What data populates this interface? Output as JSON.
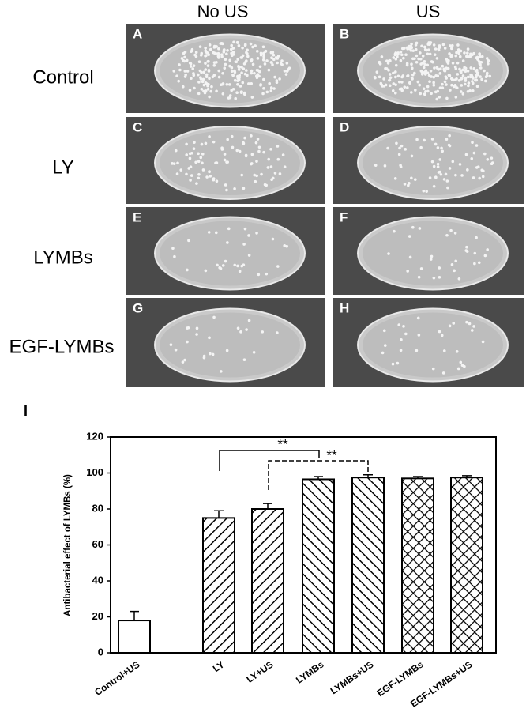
{
  "columns": [
    "No US",
    "US"
  ],
  "rows": [
    "Control",
    "LY",
    "LYMBs",
    "EGF-LYMBs"
  ],
  "panels": [
    "A",
    "B",
    "C",
    "D",
    "E",
    "F",
    "G",
    "H"
  ],
  "chart_data": {
    "type": "bar",
    "panel_label": "I",
    "y_label": "Antibacterial effect of LYMBs (%)",
    "categories": [
      "Control+US",
      "LY",
      "LY+US",
      "LYMBs",
      "LYMBs+US",
      "EGF-LYMBs",
      "EGF-LYMBs+US"
    ],
    "values": [
      18,
      75,
      80,
      96.5,
      97.5,
      97,
      97.5
    ],
    "errors": [
      5,
      4,
      3,
      1.5,
      1.5,
      1,
      1
    ],
    "hatches": [
      "none",
      "forward",
      "forward",
      "back",
      "back",
      "cross",
      "cross"
    ],
    "color": "#ffffff",
    "annotations": [
      "**",
      "**"
    ],
    "ylim": [
      0,
      120
    ],
    "yticks": [
      0,
      20,
      40,
      60,
      80,
      100,
      120
    ]
  }
}
